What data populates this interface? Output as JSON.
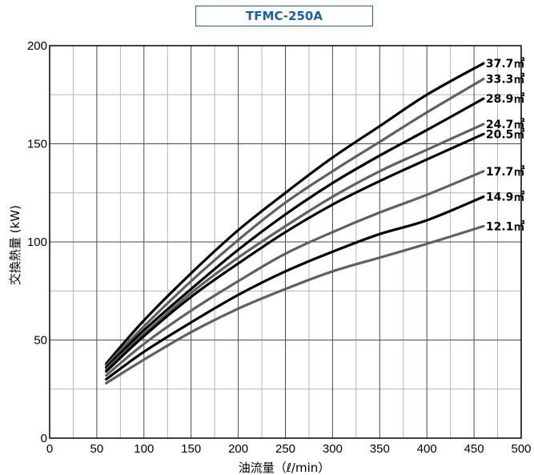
{
  "chart_data": {
    "type": "line",
    "title": "TFMC-250A",
    "xlabel": "油流量（ℓ/min）",
    "ylabel": "交換熱量 (kW)",
    "xlim": [
      0,
      500
    ],
    "ylim": [
      0,
      200
    ],
    "x_ticks": [
      "0",
      "50",
      "100",
      "150",
      "200",
      "250",
      "300",
      "350",
      "400",
      "450",
      "500"
    ],
    "y_ticks": [
      "0",
      "50",
      "100",
      "150",
      "200"
    ],
    "grid": true,
    "x": [
      60,
      100,
      150,
      200,
      250,
      300,
      350,
      400,
      460
    ],
    "series": [
      {
        "name": "37.7㎡",
        "color": "#000000",
        "values": [
          38,
          60,
          84,
          106,
          125,
          143,
          159,
          175,
          191
        ]
      },
      {
        "name": "33.3㎡",
        "color": "#606060",
        "values": [
          37,
          57,
          80,
          101,
          120,
          136,
          151,
          166,
          183
        ]
      },
      {
        "name": "28.9㎡",
        "color": "#000000",
        "values": [
          36,
          55,
          76,
          96,
          114,
          130,
          144,
          157,
          173
        ]
      },
      {
        "name": "24.7㎡",
        "color": "#606060",
        "values": [
          35,
          53,
          74,
          92,
          108,
          123,
          136,
          147,
          160
        ]
      },
      {
        "name": "20.5㎡",
        "color": "#000000",
        "values": [
          34,
          52,
          72,
          89,
          105,
          119,
          131,
          142,
          155
        ]
      },
      {
        "name": "17.7㎡",
        "color": "#606060",
        "values": [
          32,
          48,
          65,
          80,
          94,
          105,
          115,
          124,
          136
        ]
      },
      {
        "name": "14.9㎡",
        "color": "#000000",
        "values": [
          30,
          44,
          59,
          73,
          85,
          95,
          104,
          111,
          123
        ]
      },
      {
        "name": "12.1㎡",
        "color": "#606060",
        "values": [
          28,
          40,
          54,
          66,
          76,
          85,
          92,
          99,
          108
        ]
      }
    ]
  }
}
